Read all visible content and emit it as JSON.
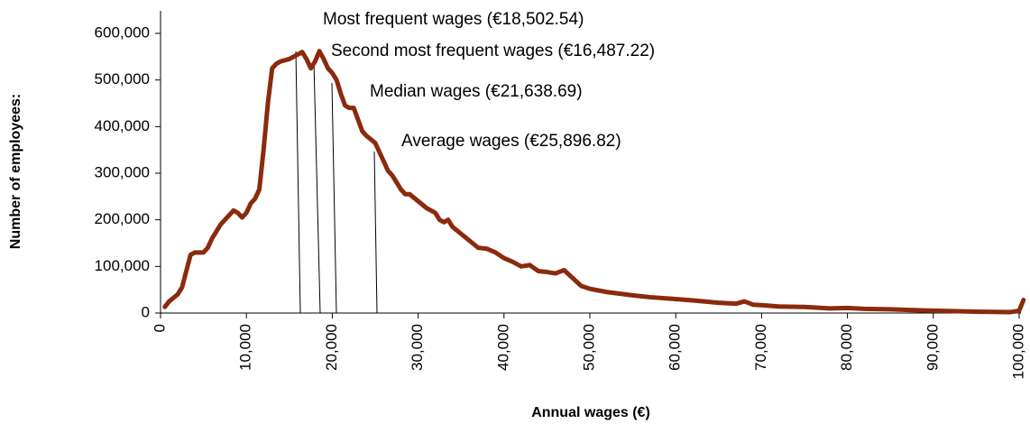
{
  "chart_data": {
    "type": "line",
    "xlabel": "Annual wages (€)",
    "ylabel": "Number of employees:",
    "annotations": [
      "Most frequent wages (€18,502.54)",
      "Second most frequent wages (€16,487.22)",
      "Median wages (€21,638.69)",
      "Average wages (€25,896.82)"
    ],
    "x": [
      500,
      1000,
      2000,
      2500,
      3000,
      3500,
      4000,
      5000,
      5500,
      6000,
      7000,
      8000,
      8500,
      9000,
      9500,
      10000,
      10500,
      11000,
      11500,
      12000,
      12500,
      13000,
      13500,
      14000,
      15000,
      15500,
      16000,
      16500,
      17000,
      17500,
      18000,
      18500,
      19000,
      19500,
      20000,
      20500,
      21000,
      21500,
      22000,
      22500,
      23000,
      23500,
      24000,
      25000,
      25500,
      26000,
      26500,
      27000,
      28000,
      28500,
      29000,
      30000,
      31000,
      32000,
      32500,
      33000,
      33500,
      34000,
      35000,
      36000,
      37000,
      38000,
      39000,
      40000,
      41000,
      42000,
      43000,
      44000,
      45000,
      46000,
      47000,
      48000,
      49000,
      50000,
      52000,
      55000,
      57000,
      60000,
      62000,
      65000,
      67000,
      68000,
      69000,
      70000,
      72000,
      75000,
      78000,
      80000,
      82000,
      85000,
      88000,
      90000,
      95000,
      99000,
      100000,
      100500
    ],
    "series": [
      {
        "name": "Number of employees",
        "color": "#8b2a0e",
        "values": [
          13000,
          25000,
          40000,
          55000,
          90000,
          125000,
          130000,
          130000,
          140000,
          160000,
          190000,
          210000,
          220000,
          215000,
          205000,
          215000,
          235000,
          245000,
          265000,
          350000,
          450000,
          525000,
          535000,
          540000,
          545000,
          550000,
          555000,
          560000,
          545000,
          525000,
          540000,
          562000,
          545000,
          525000,
          515000,
          500000,
          470000,
          445000,
          440000,
          440000,
          415000,
          390000,
          380000,
          365000,
          345000,
          325000,
          305000,
          295000,
          265000,
          255000,
          255000,
          240000,
          225000,
          215000,
          200000,
          195000,
          200000,
          185000,
          170000,
          155000,
          140000,
          138000,
          130000,
          118000,
          110000,
          100000,
          103000,
          90000,
          88000,
          85000,
          92000,
          75000,
          58000,
          52000,
          45000,
          38000,
          34000,
          30000,
          27000,
          22000,
          20000,
          25000,
          18000,
          17000,
          14000,
          13000,
          10000,
          11000,
          9000,
          8000,
          6000,
          5000,
          3000,
          2000,
          5000,
          28000
        ]
      }
    ],
    "xlim": [
      0,
      100000
    ],
    "xticks": [
      0,
      {
        "value": 10000,
        "label": "10,000"
      },
      {
        "value": 20000,
        "label": "20,000"
      },
      {
        "value": 30000,
        "label": "30,000"
      },
      {
        "value": 40000,
        "label": "40,000"
      },
      {
        "value": 50000,
        "label": "50,000"
      },
      {
        "value": 60000,
        "label": "60,000"
      },
      {
        "value": 70000,
        "label": "70,000"
      },
      {
        "value": 80000,
        "label": "80,000"
      },
      {
        "value": 90000,
        "label": "90,000"
      },
      {
        "value": 100000,
        "label": "100,000"
      }
    ],
    "ylim": [
      0,
      600000
    ],
    "yticks": [
      0,
      {
        "value": 100000,
        "label": "100,000"
      },
      {
        "value": 200000,
        "label": "200,000"
      },
      {
        "value": 300000,
        "label": "300,000"
      },
      {
        "value": 400000,
        "label": "400,000"
      },
      {
        "value": 500000,
        "label": "500,000"
      },
      {
        "value": 600000,
        "label": "600,000"
      }
    ],
    "grid": false
  }
}
